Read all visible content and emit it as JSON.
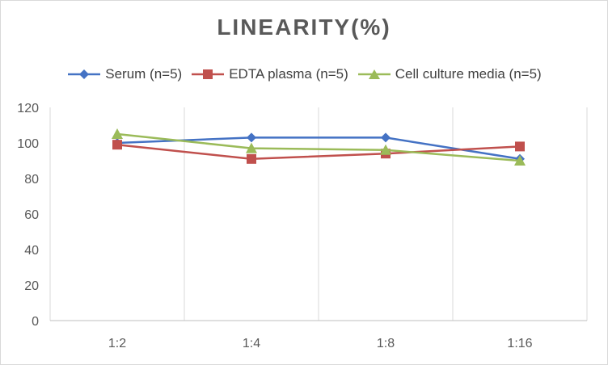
{
  "chart_data": {
    "type": "line",
    "title": "LINEARITY(%)",
    "xlabel": "",
    "ylabel": "",
    "categories": [
      "1:2",
      "1:4",
      "1:8",
      "1:16"
    ],
    "ylim": [
      0,
      120
    ],
    "yticks": [
      0,
      20,
      40,
      60,
      80,
      100,
      120
    ],
    "grid": "vertical",
    "legend_position": "top",
    "series": [
      {
        "name": "Serum (n=5)",
        "color": "#4472C4",
        "marker": "diamond",
        "values": [
          100,
          103,
          103,
          91
        ]
      },
      {
        "name": "EDTA plasma (n=5)",
        "color": "#C0504D",
        "marker": "square",
        "values": [
          99,
          91,
          94,
          98
        ]
      },
      {
        "name": "Cell culture media (n=5)",
        "color": "#9BBB59",
        "marker": "triangle",
        "values": [
          105,
          97,
          96,
          90
        ]
      }
    ]
  }
}
